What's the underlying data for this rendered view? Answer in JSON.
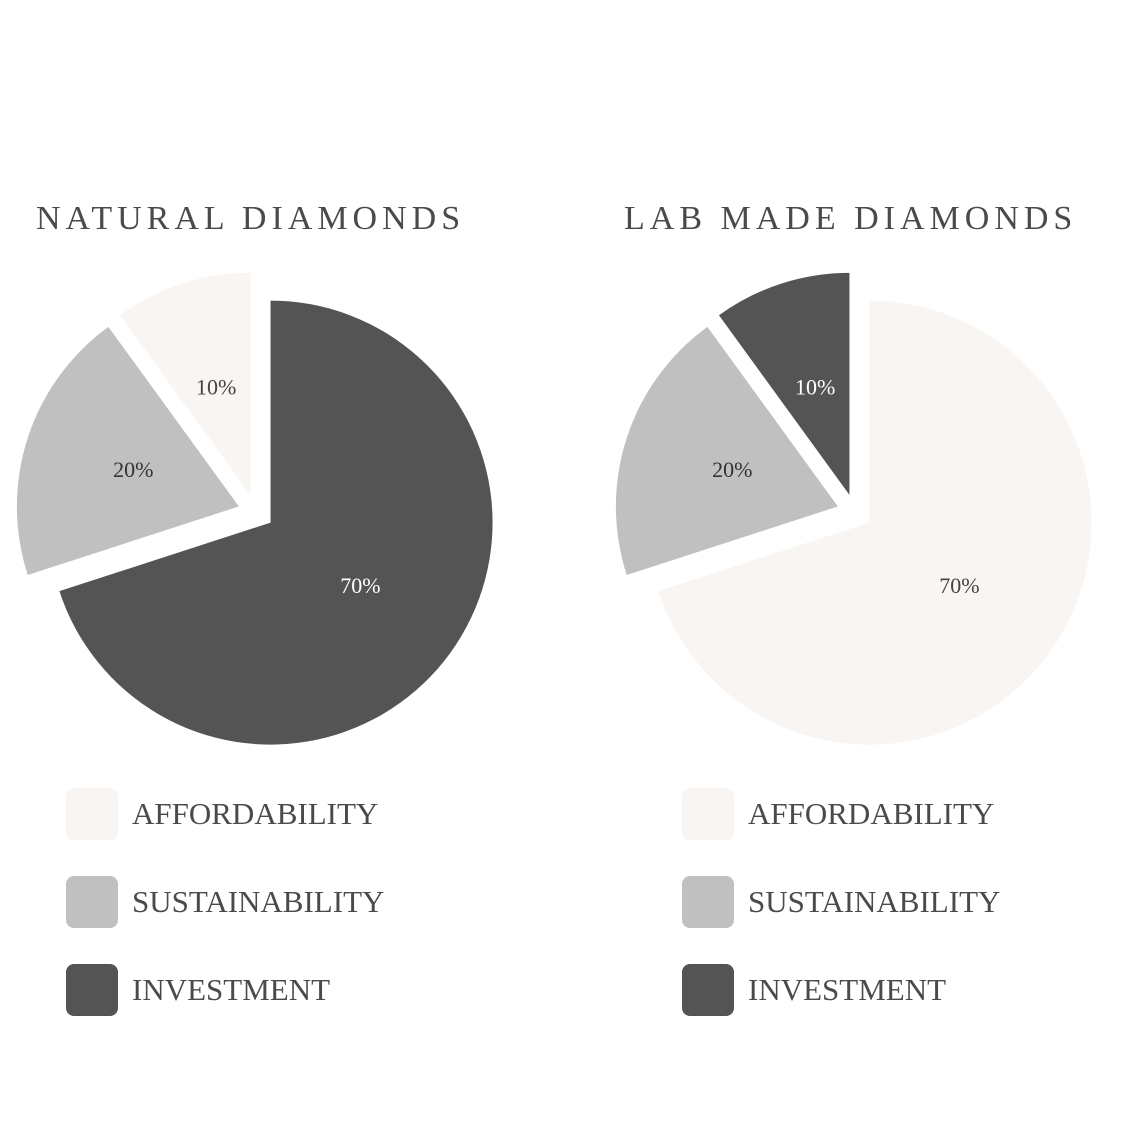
{
  "colors": {
    "affordability": "#f8f5f2",
    "sustainability": "#c0c0c0",
    "investment": "#545454"
  },
  "chart_data": [
    {
      "type": "pie",
      "title": "NATURAL DIAMONDS",
      "slices": [
        {
          "category": "INVESTMENT",
          "value": 70,
          "label": "70%",
          "color": "#545454",
          "label_color": "#ffffff"
        },
        {
          "category": "SUSTAINABILITY",
          "value": 20,
          "label": "20%",
          "color": "#c0c0c0",
          "label_color": "#333333"
        },
        {
          "category": "AFFORDABILITY",
          "value": 10,
          "label": "10%",
          "color": "#f8f5f2",
          "label_color": "#444444"
        }
      ],
      "legend": [
        {
          "label": "AFFORDABILITY",
          "color": "#f8f5f2"
        },
        {
          "label": "SUSTAINABILITY",
          "color": "#c0c0c0"
        },
        {
          "label": "INVESTMENT",
          "color": "#545454"
        }
      ],
      "legend_position": "bottom"
    },
    {
      "type": "pie",
      "title": "LAB MADE DIAMONDS",
      "slices": [
        {
          "category": "AFFORDABILITY",
          "value": 70,
          "label": "70%",
          "color": "#f8f5f2",
          "label_color": "#444444"
        },
        {
          "category": "SUSTAINABILITY",
          "value": 20,
          "label": "20%",
          "color": "#c0c0c0",
          "label_color": "#333333"
        },
        {
          "category": "INVESTMENT",
          "value": 10,
          "label": "10%",
          "color": "#545454",
          "label_color": "#ffffff"
        }
      ],
      "legend": [
        {
          "label": "AFFORDABILITY",
          "color": "#f8f5f2"
        },
        {
          "label": "SUSTAINABILITY",
          "color": "#c0c0c0"
        },
        {
          "label": "INVESTMENT",
          "color": "#545454"
        }
      ],
      "legend_position": "bottom"
    }
  ]
}
